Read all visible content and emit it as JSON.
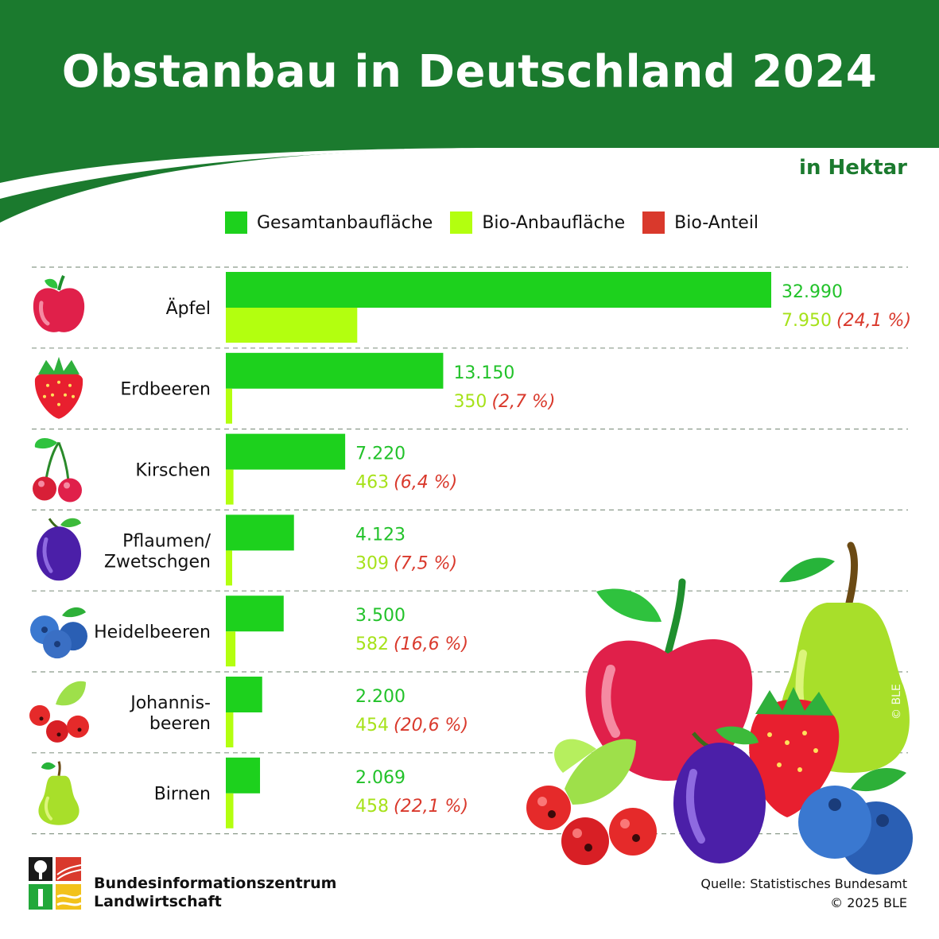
{
  "title": "Obstanbau in Deutschland 2024",
  "unit_label": "in Hektar",
  "legend": [
    {
      "label": "Gesamtanbaufläche",
      "color": "#1dd11d"
    },
    {
      "label": "Bio-Anbaufläche",
      "color": "#b3ff0f"
    },
    {
      "label": "Bio-Anteil",
      "color": "#d9392c"
    }
  ],
  "chart_data": {
    "type": "bar",
    "orientation": "horizontal",
    "title": "Obstanbau in Deutschland 2024",
    "unit": "in Hektar",
    "categories": [
      {
        "name": "Äpfel",
        "lines": [
          "Äpfel"
        ],
        "icon": "apple-icon",
        "total": 32990,
        "total_label": "32.990",
        "bio": 7950,
        "bio_label": "7.950",
        "share_label": "(24,1 %)"
      },
      {
        "name": "Erdbeeren",
        "lines": [
          "Erdbeeren"
        ],
        "icon": "strawberry-icon",
        "total": 13150,
        "total_label": "13.150",
        "bio": 350,
        "bio_label": "350",
        "share_label": "(2,7 %)"
      },
      {
        "name": "Kirschen",
        "lines": [
          "Kirschen"
        ],
        "icon": "cherries-icon",
        "total": 7220,
        "total_label": "7.220",
        "bio": 463,
        "bio_label": "463",
        "share_label": "(6,4 %)"
      },
      {
        "name": "Pflaumen/Zwetschgen",
        "lines": [
          "Pflaumen/",
          "Zwetschgen"
        ],
        "icon": "plum-icon",
        "total": 4123,
        "total_label": "4.123",
        "bio": 309,
        "bio_label": "309",
        "share_label": "(7,5 %)"
      },
      {
        "name": "Heidelbeeren",
        "lines": [
          "Heidelbeeren"
        ],
        "icon": "blueberries-icon",
        "total": 3500,
        "total_label": "3.500",
        "bio": 582,
        "bio_label": "582",
        "share_label": "(16,6 %)"
      },
      {
        "name": "Johannisbeeren",
        "lines": [
          "Johannis-",
          "beeren"
        ],
        "icon": "currants-icon",
        "total": 2200,
        "total_label": "2.200",
        "bio": 454,
        "bio_label": "454",
        "share_label": "(20,6 %)"
      },
      {
        "name": "Birnen",
        "lines": [
          "Birnen"
        ],
        "icon": "pear-icon",
        "total": 2069,
        "total_label": "2.069",
        "bio": 458,
        "bio_label": "458",
        "share_label": "(22,1 %)"
      }
    ],
    "series": [
      {
        "name": "Gesamtanbaufläche",
        "color": "#1dd11d"
      },
      {
        "name": "Bio-Anbaufläche",
        "color": "#b3ff0f"
      },
      {
        "name": "Bio-Anteil",
        "color": "#d9392c"
      }
    ],
    "xlim": [
      0,
      32990
    ],
    "grid": false,
    "legend_position": "top"
  },
  "footer": {
    "org_line1": "Bundesinformationszentrum",
    "org_line2": "Landwirtschaft",
    "source_line1": "Quelle: Statistisches Bundesamt",
    "source_line2": "© 2025 BLE"
  },
  "watermark": "© BLE",
  "colors": {
    "header_green": "#1b7a2e",
    "total_text": "#22c22a",
    "bio_text": "#a6e21a",
    "share_text": "#d9392c"
  }
}
